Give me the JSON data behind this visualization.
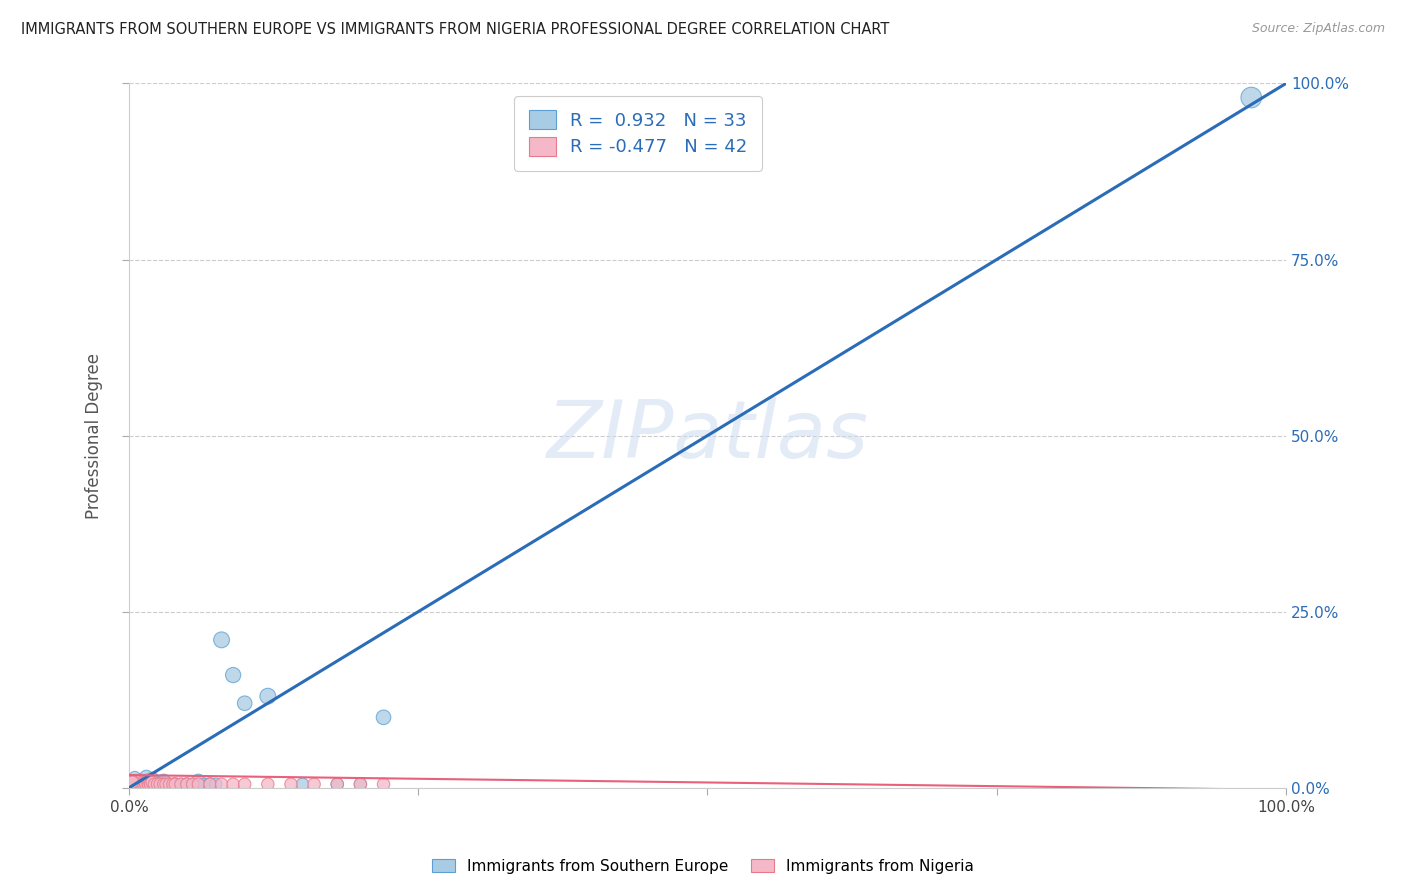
{
  "title": "IMMIGRANTS FROM SOUTHERN EUROPE VS IMMIGRANTS FROM NIGERIA PROFESSIONAL DEGREE CORRELATION CHART",
  "source": "Source: ZipAtlas.com",
  "ylabel": "Professional Degree",
  "xlim": [
    0,
    1.0
  ],
  "ylim": [
    0,
    1.0
  ],
  "xtick_vals": [
    0.0,
    0.25,
    0.5,
    0.75,
    1.0
  ],
  "xtick_labels": [
    "0.0%",
    "",
    "",
    "",
    "100.0%"
  ],
  "ytick_vals": [
    0.0,
    0.25,
    0.5,
    0.75,
    1.0
  ],
  "right_ytick_labels": [
    "100.0%",
    "75.0%",
    "50.0%",
    "25.0%",
    "0.0%"
  ],
  "right_ytick_vals": [
    1.0,
    0.75,
    0.5,
    0.25,
    0.0
  ],
  "blue_color": "#a8cce4",
  "pink_color": "#f4b8c8",
  "blue_line_color": "#2b6cb8",
  "pink_line_color": "#e8607a",
  "blue_edge_color": "#5b9fd4",
  "pink_edge_color": "#e8788a",
  "legend_R_blue": "0.932",
  "legend_N_blue": "33",
  "legend_R_pink": "-0.477",
  "legend_N_pink": "42",
  "watermark": "ZIPatlas",
  "blue_line_x": [
    0.0,
    1.0
  ],
  "blue_line_y": [
    0.0,
    1.0
  ],
  "pink_line_x": [
    0.0,
    1.0
  ],
  "pink_line_y": [
    0.018,
    -0.003
  ],
  "blue_scatter_x": [
    0.005,
    0.008,
    0.01,
    0.012,
    0.015,
    0.015,
    0.018,
    0.02,
    0.02,
    0.025,
    0.025,
    0.03,
    0.03,
    0.035,
    0.04,
    0.045,
    0.05,
    0.055,
    0.06,
    0.065,
    0.07,
    0.075,
    0.08,
    0.09,
    0.1,
    0.12,
    0.15,
    0.18,
    0.2,
    0.22,
    0.005,
    0.007,
    0.97
  ],
  "blue_scatter_y": [
    0.005,
    0.008,
    0.01,
    0.005,
    0.01,
    0.015,
    0.005,
    0.008,
    0.012,
    0.005,
    0.008,
    0.005,
    0.01,
    0.005,
    0.005,
    0.005,
    0.005,
    0.005,
    0.01,
    0.005,
    0.005,
    0.005,
    0.21,
    0.16,
    0.12,
    0.13,
    0.005,
    0.005,
    0.005,
    0.1,
    0.015,
    0.01,
    0.98
  ],
  "blue_scatter_sizes": [
    80,
    90,
    100,
    80,
    90,
    100,
    80,
    90,
    100,
    80,
    90,
    80,
    90,
    80,
    90,
    80,
    90,
    80,
    90,
    80,
    90,
    80,
    130,
    120,
    110,
    130,
    80,
    80,
    80,
    110,
    70,
    70,
    220
  ],
  "pink_scatter_x": [
    0.002,
    0.004,
    0.005,
    0.006,
    0.007,
    0.008,
    0.009,
    0.01,
    0.011,
    0.012,
    0.013,
    0.014,
    0.015,
    0.016,
    0.017,
    0.018,
    0.019,
    0.02,
    0.022,
    0.025,
    0.027,
    0.03,
    0.032,
    0.035,
    0.038,
    0.04,
    0.045,
    0.05,
    0.055,
    0.06,
    0.07,
    0.08,
    0.09,
    0.1,
    0.12,
    0.14,
    0.16,
    0.18,
    0.2,
    0.22,
    0.002,
    0.003
  ],
  "pink_scatter_y": [
    0.005,
    0.008,
    0.005,
    0.01,
    0.005,
    0.008,
    0.005,
    0.01,
    0.005,
    0.008,
    0.005,
    0.008,
    0.005,
    0.01,
    0.005,
    0.008,
    0.005,
    0.008,
    0.005,
    0.005,
    0.005,
    0.005,
    0.005,
    0.005,
    0.005,
    0.005,
    0.005,
    0.005,
    0.005,
    0.005,
    0.005,
    0.005,
    0.005,
    0.005,
    0.005,
    0.005,
    0.005,
    0.005,
    0.005,
    0.005,
    0.01,
    0.008
  ],
  "pink_scatter_sizes": [
    80,
    80,
    90,
    80,
    90,
    80,
    90,
    80,
    90,
    80,
    90,
    80,
    90,
    80,
    90,
    80,
    90,
    80,
    80,
    90,
    80,
    80,
    80,
    80,
    80,
    80,
    80,
    80,
    80,
    80,
    80,
    80,
    80,
    80,
    80,
    80,
    80,
    80,
    80,
    80,
    80,
    80
  ]
}
